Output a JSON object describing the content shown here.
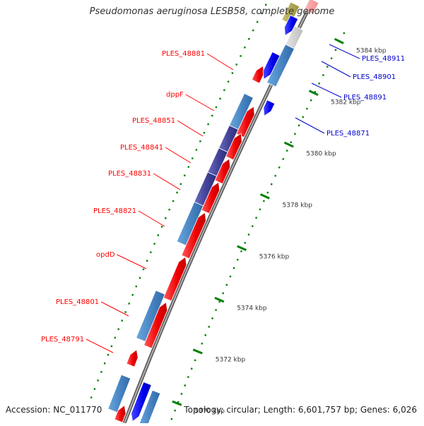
{
  "title": "Pseudomonas aeruginosa LESB58, complete genome",
  "footer": {
    "accession": "Accession: NC_011770",
    "summary": "Topology: circular; Length: 6,601,757 bp; Genes: 6,026"
  },
  "colors": {
    "forward_gene": "#ff0000",
    "reverse_gene": "#0000ff",
    "cds_light": "#4f8fcc",
    "cds_dark": "#3a3a8c",
    "backbone": "#888888",
    "tick": "#008000",
    "label_forward": "#ff0000",
    "label_reverse": "#0000cc"
  },
  "scale": {
    "ticks": [
      {
        "label": "5370 kbp",
        "kbp": 5370
      },
      {
        "label": "5372 kbp",
        "kbp": 5372
      },
      {
        "label": "5374 kbp",
        "kbp": 5374
      },
      {
        "label": "5376 kbp",
        "kbp": 5376
      },
      {
        "label": "5378 kbp",
        "kbp": 5378
      },
      {
        "label": "5380 kbp",
        "kbp": 5380
      },
      {
        "label": "5382 kbp",
        "kbp": 5382
      },
      {
        "label": "5384 kbp",
        "kbp": 5384
      }
    ]
  },
  "gene_labels": {
    "left": [
      "PLES_48881",
      "dppF",
      "PLES_48851",
      "PLES_48841",
      "PLES_48831",
      "PLES_48821",
      "opdD",
      "PLES_48801",
      "PLES_48791"
    ],
    "right": [
      "PLES_48911",
      "PLES_48901",
      "PLES_48891",
      "PLES_48871"
    ]
  }
}
